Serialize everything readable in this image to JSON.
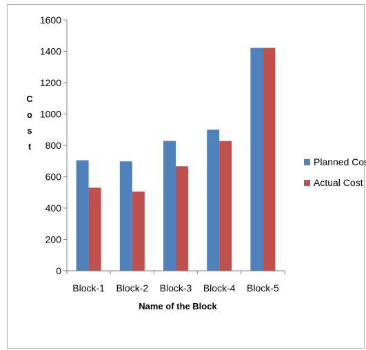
{
  "chart_data": {
    "type": "bar",
    "title": "",
    "xlabel": "Name of the Block",
    "ylabel": "Cost",
    "ylim": [
      0,
      1600
    ],
    "yticks": [
      0,
      200,
      400,
      600,
      800,
      1000,
      1200,
      1400,
      1600
    ],
    "categories": [
      "Block-1",
      "Block-2",
      "Block-3",
      "Block-4",
      "Block-5"
    ],
    "series": [
      {
        "name": "Planned Cost",
        "color": "#4f81bd",
        "values": [
          705,
          698,
          828,
          900,
          1422
        ]
      },
      {
        "name": "Actual Cost",
        "color": "#c0504d",
        "values": [
          530,
          505,
          667,
          828,
          1422
        ]
      }
    ],
    "grid": false,
    "legend": "right"
  }
}
